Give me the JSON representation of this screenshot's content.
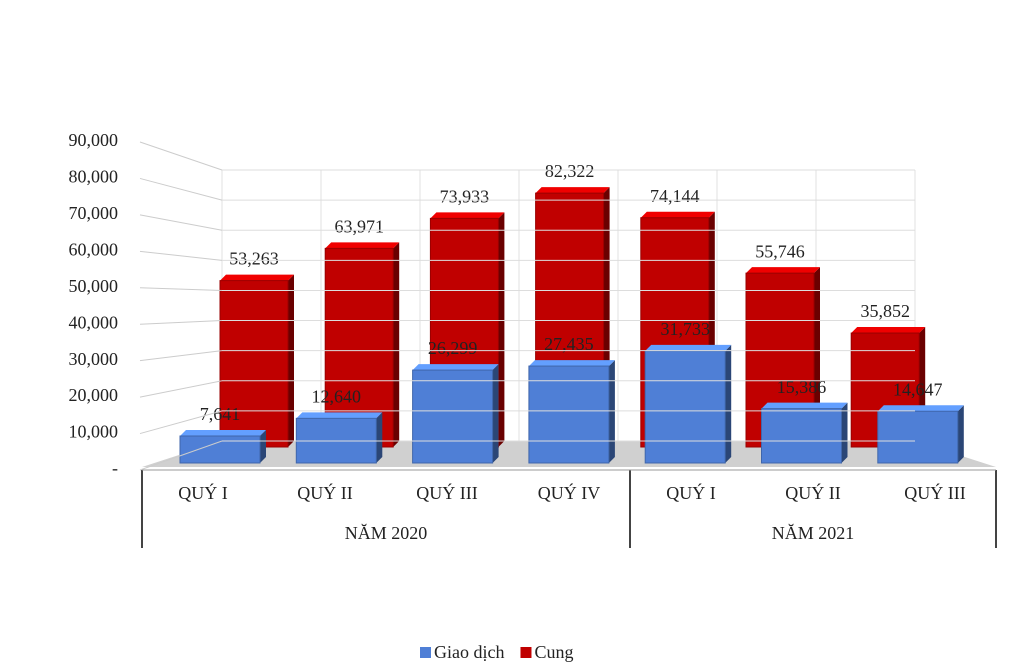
{
  "chart_data": {
    "type": "bar3d",
    "groups": [
      {
        "name": "NĂM 2020",
        "categories": [
          "QUÝ I",
          "QUÝ II",
          "QUÝ III",
          "QUÝ IV"
        ]
      },
      {
        "name": "NĂM 2021",
        "categories": [
          "QUÝ I",
          "QUÝ II",
          "QUÝ III"
        ]
      }
    ],
    "series": [
      {
        "name": "Giao dịch",
        "color": "#4f7fd6",
        "values": [
          7641,
          12640,
          26299,
          27435,
          31733,
          15386,
          14647
        ],
        "value_labels": [
          "7,641",
          "12,640",
          "26,299",
          "27,435",
          "31,733",
          "15,386",
          "14,647"
        ]
      },
      {
        "name": "Cung",
        "color": "#c00000",
        "values": [
          53263,
          63971,
          73933,
          82322,
          74144,
          55746,
          35852
        ],
        "value_labels": [
          "53,263",
          "63,971",
          "73,933",
          "82,322",
          "74,144",
          "55,746",
          "35,852"
        ]
      }
    ],
    "ylim": [
      0,
      90000
    ],
    "yticks": [
      {
        "value": 0,
        "label": "-"
      },
      {
        "value": 10000,
        "label": "10,000"
      },
      {
        "value": 20000,
        "label": "20,000"
      },
      {
        "value": 30000,
        "label": "30,000"
      },
      {
        "value": 40000,
        "label": "40,000"
      },
      {
        "value": 50000,
        "label": "50,000"
      },
      {
        "value": 60000,
        "label": "60,000"
      },
      {
        "value": 70000,
        "label": "70,000"
      },
      {
        "value": 80000,
        "label": "80,000"
      },
      {
        "value": 90000,
        "label": "90,000"
      }
    ],
    "grid": true,
    "legend": "bottom"
  }
}
